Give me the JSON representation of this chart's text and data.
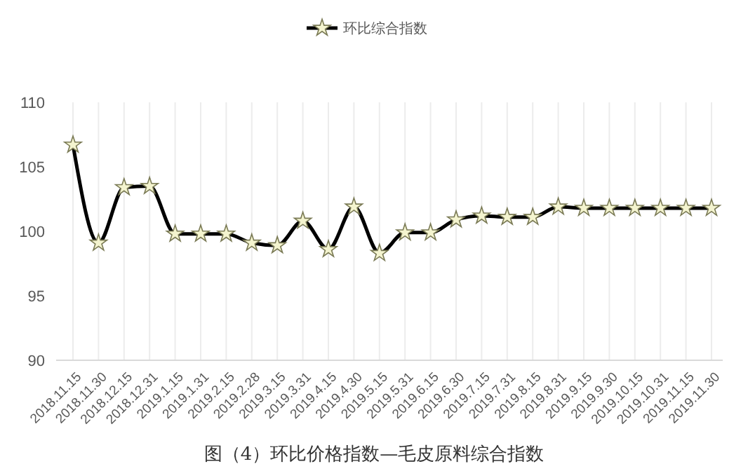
{
  "chart_data": {
    "type": "line",
    "title": "图（4）环比价格指数—毛皮原料综合指数",
    "categories": [
      "2018.11.15",
      "2018.11.30",
      "2018.12.15",
      "2018.12.31",
      "2019.1.15",
      "2019.1.31",
      "2019.2.15",
      "2019.2.28",
      "2019.3.15",
      "2019.3.31",
      "2019.4.15",
      "2019.4.30",
      "2019.5.15",
      "2019.5.31",
      "2019.6.15",
      "2019.6.30",
      "2019.7.15",
      "2019.7.31",
      "2019.8.15",
      "2019.8.31",
      "2019.9.15",
      "2019.9.30",
      "2019.10.15",
      "2019.10.31",
      "2019.11.15",
      "2019.11.30"
    ],
    "series": [
      {
        "name": "环比综合指数",
        "color": "#000000",
        "values": [
          106.7,
          99.1,
          103.4,
          103.5,
          99.8,
          99.8,
          99.8,
          99.1,
          98.9,
          100.8,
          98.6,
          101.9,
          98.3,
          99.9,
          99.9,
          100.9,
          101.2,
          101.1,
          101.1,
          101.9,
          101.8,
          101.8,
          101.8,
          101.8,
          101.8,
          101.8
        ]
      }
    ],
    "ylim": [
      90,
      110
    ],
    "yticks": [
      90,
      95,
      100,
      105,
      110
    ],
    "grid": "x",
    "legend": "top",
    "marker": "star",
    "line_style": "solid"
  }
}
